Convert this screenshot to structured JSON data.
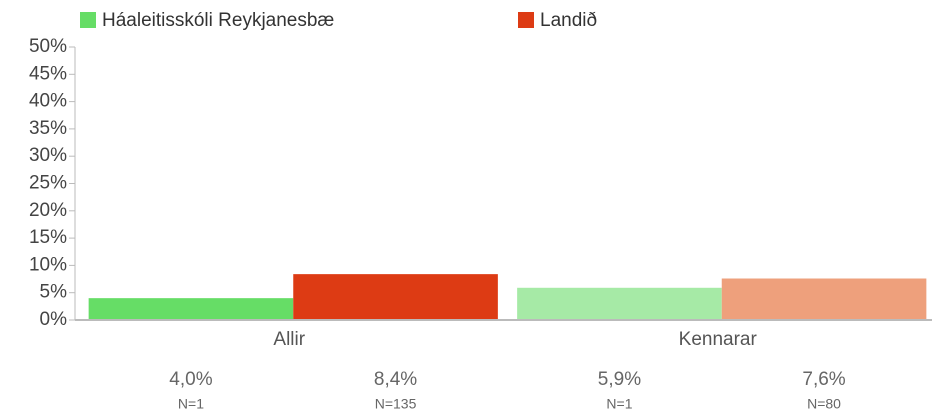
{
  "chart_data": {
    "type": "bar",
    "categories": [
      "Allir",
      "Kennarar"
    ],
    "series": [
      {
        "name": "Háaleitisskóli Reykjanesbæ",
        "color": "#66dd66",
        "colors": [
          "#66dd66",
          "#a6eaa6"
        ],
        "values": [
          4.0,
          5.9
        ],
        "value_labels": [
          "4,0%",
          "5,9%"
        ],
        "n_labels": [
          "N=1",
          "N=1"
        ]
      },
      {
        "name": "Landið",
        "color": "#dd3b14",
        "colors": [
          "#dd3b14",
          "#eea07c"
        ],
        "values": [
          8.4,
          7.6
        ],
        "value_labels": [
          "8,4%",
          "7,6%"
        ],
        "n_labels": [
          "N=135",
          "N=80"
        ]
      }
    ],
    "ylim": [
      0,
      50
    ],
    "yticks": [
      {
        "value": 0,
        "label": "0%"
      },
      {
        "value": 5,
        "label": "5%"
      },
      {
        "value": 10,
        "label": "10%"
      },
      {
        "value": 15,
        "label": "15%"
      },
      {
        "value": 20,
        "label": "20%"
      },
      {
        "value": 25,
        "label": "25%"
      },
      {
        "value": 30,
        "label": "30%"
      },
      {
        "value": 35,
        "label": "35%"
      },
      {
        "value": 40,
        "label": "40%"
      },
      {
        "value": 45,
        "label": "45%"
      },
      {
        "value": 50,
        "label": "50%"
      }
    ]
  }
}
